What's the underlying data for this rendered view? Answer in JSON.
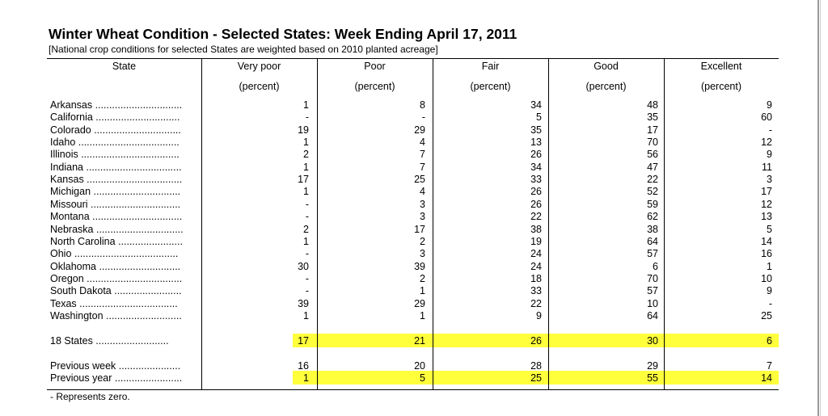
{
  "title": "Winter Wheat Condition - Selected States: Week Ending April 17, 2011",
  "subtitle": "[National crop conditions for selected States are weighted based on 2010 planted acreage]",
  "columns": [
    "State",
    "Very poor",
    "Poor",
    "Fair",
    "Good",
    "Excellent"
  ],
  "unit_label": "(percent)",
  "rows": [
    {
      "state": "Arkansas ...............................",
      "values": [
        "1",
        "8",
        "34",
        "48",
        "9"
      ]
    },
    {
      "state": "California ..............................",
      "values": [
        "-",
        "-",
        "5",
        "35",
        "60"
      ]
    },
    {
      "state": "Colorado ...............................",
      "values": [
        "19",
        "29",
        "35",
        "17",
        "-"
      ]
    },
    {
      "state": "Idaho ....................................",
      "values": [
        "1",
        "4",
        "13",
        "70",
        "12"
      ]
    },
    {
      "state": "Illinois ...................................",
      "values": [
        "2",
        "7",
        "26",
        "56",
        "9"
      ]
    },
    {
      "state": "Indiana ..................................",
      "values": [
        "1",
        "7",
        "34",
        "47",
        "11"
      ]
    },
    {
      "state": "Kansas ..................................",
      "values": [
        "17",
        "25",
        "33",
        "22",
        "3"
      ]
    },
    {
      "state": "Michigan ...............................",
      "values": [
        "1",
        "4",
        "26",
        "52",
        "17"
      ]
    },
    {
      "state": "Missouri ................................",
      "values": [
        "-",
        "3",
        "26",
        "59",
        "12"
      ]
    },
    {
      "state": "Montana ................................",
      "values": [
        "-",
        "3",
        "22",
        "62",
        "13"
      ]
    },
    {
      "state": "Nebraska ...............................",
      "values": [
        "2",
        "17",
        "38",
        "38",
        "5"
      ]
    },
    {
      "state": "North Carolina .......................",
      "values": [
        "1",
        "2",
        "19",
        "64",
        "14"
      ]
    },
    {
      "state": "Ohio .....................................",
      "values": [
        "-",
        "3",
        "24",
        "57",
        "16"
      ]
    },
    {
      "state": "Oklahoma .............................",
      "values": [
        "30",
        "39",
        "24",
        "6",
        "1"
      ]
    },
    {
      "state": "Oregon ..................................",
      "values": [
        "-",
        "2",
        "18",
        "70",
        "10"
      ]
    },
    {
      "state": "South Dakota ........................",
      "values": [
        "-",
        "1",
        "33",
        "57",
        "9"
      ]
    },
    {
      "state": "Texas ...................................",
      "values": [
        "39",
        "29",
        "22",
        "10",
        "-"
      ]
    },
    {
      "state": "Washington ...........................",
      "values": [
        "1",
        "1",
        "9",
        "64",
        "25"
      ]
    }
  ],
  "summary": [
    {
      "state": "18 States ..........................",
      "values": [
        "17",
        "21",
        "26",
        "30",
        "6"
      ],
      "highlight": true
    },
    {
      "state": "Previous week ......................",
      "values": [
        "16",
        "20",
        "28",
        "29",
        "7"
      ],
      "highlight": false
    },
    {
      "state": "Previous year ........................",
      "values": [
        "1",
        "5",
        "25",
        "55",
        "14"
      ],
      "highlight": true
    }
  ],
  "highlight_color": "#ffff3c",
  "footnote": "- Represents zero."
}
